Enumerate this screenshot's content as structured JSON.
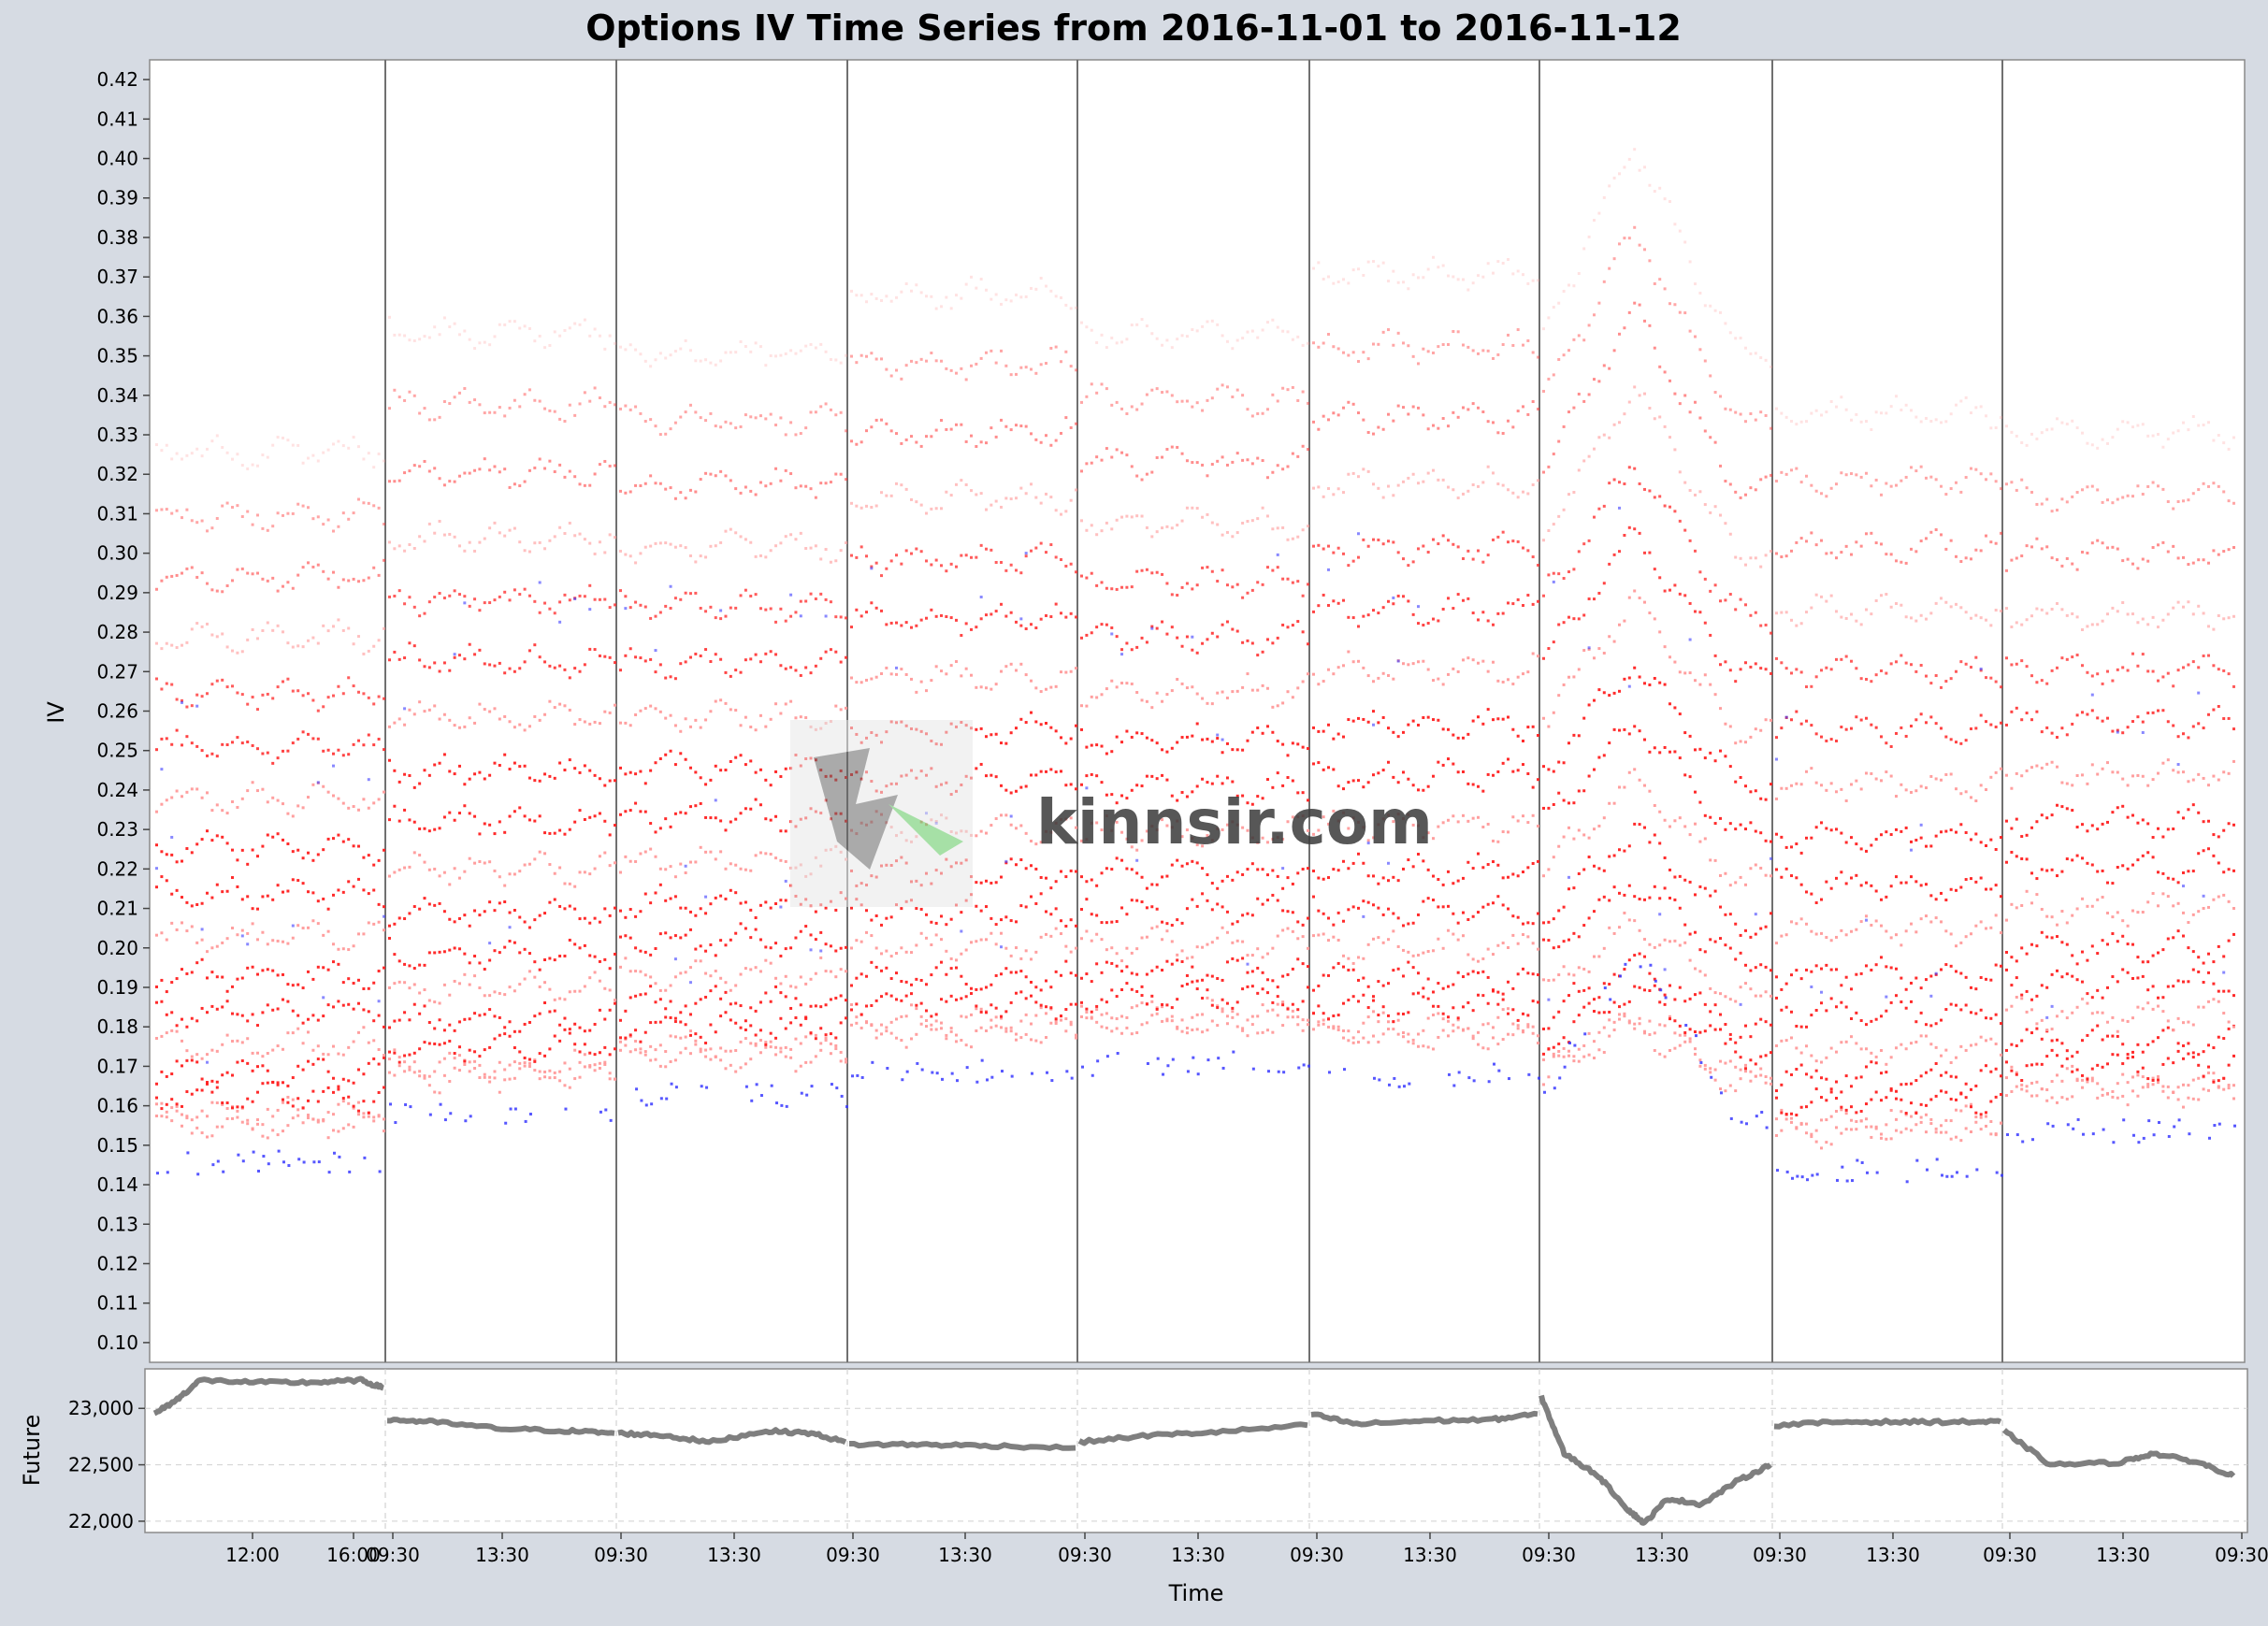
{
  "chart_data": [
    {
      "type": "scatter",
      "title": "Options IV Time Series from 2016-11-01 to 2016-11-12",
      "ylabel": "IV",
      "ylim": [
        0.095,
        0.425
      ],
      "yticks": [
        "0.10",
        "0.11",
        "0.12",
        "0.13",
        "0.14",
        "0.15",
        "0.16",
        "0.17",
        "0.18",
        "0.19",
        "0.20",
        "0.21",
        "0.22",
        "0.23",
        "0.24",
        "0.25",
        "0.26",
        "0.27",
        "0.28",
        "0.29",
        "0.30",
        "0.31",
        "0.32",
        "0.33",
        "0.34",
        "0.35",
        "0.36",
        "0.37",
        "0.38",
        "0.39",
        "0.40",
        "0.41",
        "0.42"
      ],
      "grid": false,
      "sessions": 9,
      "session_baseline_iv": [
        0.15,
        0.162,
        0.167,
        0.173,
        0.175,
        0.172,
        0.168,
        0.148,
        0.158
      ],
      "session_top_iv": [
        0.32,
        0.35,
        0.345,
        0.36,
        0.35,
        0.365,
        0.375,
        0.33,
        0.325
      ],
      "peak_session": {
        "index": 6,
        "peak_iv": 0.4,
        "low_iv": 0.16,
        "blue_peak_iv": 0.205
      },
      "series_colors": {
        "red": "#ff2020",
        "light_red": "#ff9a9a",
        "blue": "#3a3aff"
      }
    },
    {
      "type": "line",
      "xlabel": "Time",
      "ylabel": "Future",
      "ylim": [
        21900,
        23350
      ],
      "yticks": [
        "22,000",
        "22,500",
        "23,000"
      ],
      "xticks": [
        "12:00",
        "16:00",
        "09:30",
        "13:30",
        "09:30",
        "13:30",
        "09:30",
        "13:30",
        "09:30",
        "13:30",
        "09:30",
        "13:30",
        "09:30",
        "13:30",
        "09:30",
        "13:30",
        "09:30",
        "13:30",
        "09:30"
      ],
      "grid": true,
      "line_color": "#7f7f7f",
      "sessions": [
        [
          [
            0,
            22950
          ],
          [
            0.1,
            23080
          ],
          [
            0.2,
            23250
          ],
          [
            0.45,
            23230
          ],
          [
            0.7,
            23230
          ],
          [
            0.9,
            23250
          ],
          [
            1.0,
            23180
          ]
        ],
        [
          [
            0,
            22900
          ],
          [
            0.2,
            22880
          ],
          [
            0.5,
            22820
          ],
          [
            0.8,
            22800
          ],
          [
            1.0,
            22780
          ]
        ],
        [
          [
            0,
            22780
          ],
          [
            0.2,
            22760
          ],
          [
            0.4,
            22700
          ],
          [
            0.65,
            22800
          ],
          [
            0.85,
            22780
          ],
          [
            1.0,
            22700
          ]
        ],
        [
          [
            0,
            22680
          ],
          [
            0.3,
            22680
          ],
          [
            0.6,
            22670
          ],
          [
            1.0,
            22650
          ]
        ],
        [
          [
            0,
            22700
          ],
          [
            0.3,
            22760
          ],
          [
            0.6,
            22790
          ],
          [
            1.0,
            22850
          ]
        ],
        [
          [
            0,
            22950
          ],
          [
            0.2,
            22860
          ],
          [
            0.5,
            22890
          ],
          [
            0.8,
            22900
          ],
          [
            1.0,
            22950
          ]
        ],
        [
          [
            0,
            23100
          ],
          [
            0.1,
            22600
          ],
          [
            0.25,
            22400
          ],
          [
            0.38,
            22100
          ],
          [
            0.45,
            21980
          ],
          [
            0.55,
            22200
          ],
          [
            0.7,
            22150
          ],
          [
            0.85,
            22350
          ],
          [
            1.0,
            22500
          ]
        ],
        [
          [
            0,
            22850
          ],
          [
            0.3,
            22880
          ],
          [
            0.6,
            22880
          ],
          [
            0.85,
            22880
          ],
          [
            1.0,
            22880
          ]
        ],
        [
          [
            0,
            22800
          ],
          [
            0.2,
            22500
          ],
          [
            0.5,
            22520
          ],
          [
            0.65,
            22600
          ],
          [
            0.85,
            22520
          ],
          [
            1.0,
            22400
          ]
        ]
      ]
    }
  ],
  "watermark": {
    "text": "kinnsir.com"
  }
}
